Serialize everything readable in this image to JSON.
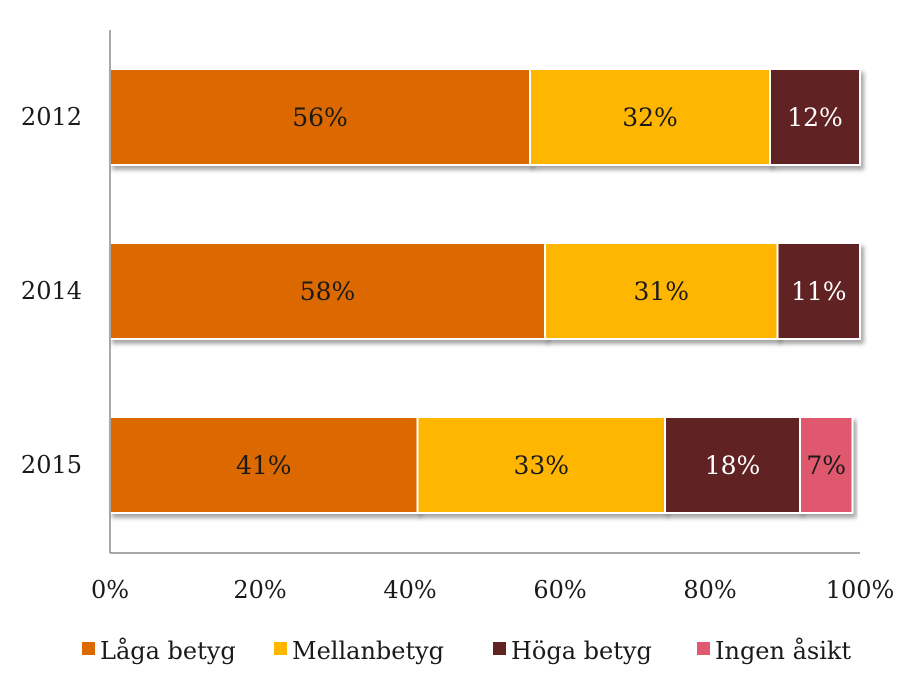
{
  "chart_data": {
    "type": "bar",
    "orientation": "horizontal",
    "stacked": true,
    "title": "",
    "xlabel": "",
    "ylabel": "",
    "xlim": [
      0,
      100
    ],
    "x_ticks": [
      "0%",
      "20%",
      "40%",
      "60%",
      "80%",
      "100%"
    ],
    "categories": [
      "2012",
      "2014",
      "2015"
    ],
    "series": [
      {
        "name": "Låga betyg",
        "color": "#dc6900",
        "values": [
          56,
          58,
          41
        ],
        "labels": [
          "56%",
          "58%",
          "41%"
        ],
        "label_color": "#1a1a1a"
      },
      {
        "name": "Mellanbetyg",
        "color": "#ffb600",
        "values": [
          32,
          31,
          33
        ],
        "labels": [
          "32%",
          "31%",
          "33%"
        ],
        "label_color": "#1a1a1a"
      },
      {
        "name": "Höga betyg",
        "color": "#602320",
        "values": [
          12,
          11,
          18
        ],
        "labels": [
          "12%",
          "11%",
          "18%"
        ],
        "label_color": "#ffffff"
      },
      {
        "name": "Ingen åsikt",
        "color": "#e0596e",
        "values": [
          0,
          0,
          7
        ],
        "labels": [
          "",
          "",
          "7%"
        ],
        "label_color": "#1a1a1a"
      }
    ],
    "grid": false,
    "legend": "bottom"
  }
}
